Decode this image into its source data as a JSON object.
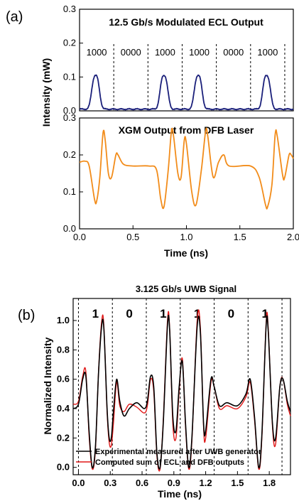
{
  "chart_data": [
    {
      "type": "line",
      "panel_label": "(a)",
      "title": "12.5 Gb/s Modulated ECL Output",
      "ylabel": "Intensity (mW)",
      "xlim": [
        0,
        2.0
      ],
      "ylim": [
        0,
        0.3
      ],
      "y_ticks": [
        "0.0",
        "0.1",
        "0.2",
        "0.3"
      ],
      "bit_labels": [
        "1000",
        "0000",
        "1000",
        "1000",
        "0000",
        "1000"
      ],
      "bit_boundaries": [
        0.32,
        0.64,
        0.96,
        1.28,
        1.6,
        1.92
      ],
      "series": [
        {
          "color": "#1a1f7a",
          "baseline": 0.005,
          "pulses": [
            {
              "center": 0.15,
              "peak": 0.105
            },
            {
              "center": 0.79,
              "peak": 0.105
            },
            {
              "center": 1.11,
              "peak": 0.105
            },
            {
              "center": 1.75,
              "peak": 0.105
            }
          ]
        }
      ]
    },
    {
      "type": "line",
      "title": "XGM Output from DFB Laser",
      "xlabel": "Time (ns)",
      "xlim": [
        0,
        2.0
      ],
      "ylim": [
        0,
        0.3
      ],
      "x_ticks": [
        "0.0",
        "0.5",
        "1.0",
        "1.5",
        "2.0"
      ],
      "y_ticks": [
        "0.0",
        "0.1",
        "0.2",
        "0.3"
      ],
      "series": [
        {
          "color": "#f28c1a",
          "points": [
            [
              0,
              0.18
            ],
            [
              0.05,
              0.183
            ],
            [
              0.09,
              0.17
            ],
            [
              0.14,
              0.08
            ],
            [
              0.16,
              0.075
            ],
            [
              0.19,
              0.14
            ],
            [
              0.22,
              0.26
            ],
            [
              0.24,
              0.24
            ],
            [
              0.27,
              0.15
            ],
            [
              0.3,
              0.14
            ],
            [
              0.34,
              0.2
            ],
            [
              0.36,
              0.2
            ],
            [
              0.41,
              0.175
            ],
            [
              0.5,
              0.17
            ],
            [
              0.65,
              0.17
            ],
            [
              0.72,
              0.16
            ],
            [
              0.76,
              0.08
            ],
            [
              0.79,
              0.06
            ],
            [
              0.83,
              0.16
            ],
            [
              0.86,
              0.265
            ],
            [
              0.88,
              0.25
            ],
            [
              0.92,
              0.15
            ],
            [
              0.95,
              0.14
            ],
            [
              0.98,
              0.24
            ],
            [
              1.0,
              0.23
            ],
            [
              1.05,
              0.1
            ],
            [
              1.09,
              0.065
            ],
            [
              1.14,
              0.16
            ],
            [
              1.18,
              0.265
            ],
            [
              1.2,
              0.25
            ],
            [
              1.25,
              0.14
            ],
            [
              1.3,
              0.18
            ],
            [
              1.35,
              0.2
            ],
            [
              1.4,
              0.17
            ],
            [
              1.6,
              0.17
            ],
            [
              1.68,
              0.14
            ],
            [
              1.74,
              0.065
            ],
            [
              1.76,
              0.06
            ],
            [
              1.8,
              0.12
            ],
            [
              1.83,
              0.255
            ],
            [
              1.85,
              0.25
            ],
            [
              1.9,
              0.145
            ],
            [
              1.92,
              0.14
            ],
            [
              1.96,
              0.2
            ],
            [
              1.98,
              0.2
            ],
            [
              2.0,
              0.19
            ]
          ]
        }
      ]
    },
    {
      "type": "line",
      "panel_label": "(b)",
      "title": "3.125 Gb/s UWB Signal",
      "xlabel": "Time (ns)",
      "ylabel": "Normalized Intensity",
      "xlim": [
        -0.05,
        2.0
      ],
      "ylim": [
        -0.05,
        1.15
      ],
      "x_ticks": [
        "0.0",
        "0.3",
        "0.6",
        "0.9",
        "1.2",
        "1.5",
        "1.8"
      ],
      "y_ticks": [
        "0.0",
        "0.2",
        "0.4",
        "0.6",
        "0.8",
        "1.0"
      ],
      "bit_labels": [
        "1",
        "0",
        "1",
        "1",
        "0",
        "1"
      ],
      "bit_boundaries": [
        0.0,
        0.32,
        0.64,
        0.96,
        1.28,
        1.6,
        1.92
      ],
      "legend_position": "bottom",
      "series": [
        {
          "name": "Experimental measured after UWB generator",
          "color": "#000000",
          "points": [
            [
              -0.05,
              0.4
            ],
            [
              0.0,
              0.43
            ],
            [
              0.04,
              0.6
            ],
            [
              0.07,
              0.62
            ],
            [
              0.1,
              0.25
            ],
            [
              0.13,
              0.0
            ],
            [
              0.16,
              0.14
            ],
            [
              0.19,
              0.65
            ],
            [
              0.22,
              0.97
            ],
            [
              0.24,
              0.94
            ],
            [
              0.27,
              0.4
            ],
            [
              0.29,
              0.2
            ],
            [
              0.31,
              0.2
            ],
            [
              0.33,
              0.38
            ],
            [
              0.36,
              0.6
            ],
            [
              0.39,
              0.45
            ],
            [
              0.43,
              0.35
            ],
            [
              0.48,
              0.4
            ],
            [
              0.55,
              0.44
            ],
            [
              0.62,
              0.4
            ],
            [
              0.65,
              0.45
            ],
            [
              0.68,
              0.62
            ],
            [
              0.71,
              0.55
            ],
            [
              0.74,
              0.1
            ],
            [
              0.77,
              0.0
            ],
            [
              0.8,
              0.3
            ],
            [
              0.84,
              0.97
            ],
            [
              0.86,
              0.94
            ],
            [
              0.89,
              0.35
            ],
            [
              0.92,
              0.25
            ],
            [
              0.95,
              0.55
            ],
            [
              0.98,
              0.72
            ],
            [
              1.01,
              0.3
            ],
            [
              1.04,
              0.0
            ],
            [
              1.07,
              0.2
            ],
            [
              1.12,
              0.96
            ],
            [
              1.15,
              0.92
            ],
            [
              1.18,
              0.3
            ],
            [
              1.2,
              0.25
            ],
            [
              1.25,
              0.6
            ],
            [
              1.28,
              0.55
            ],
            [
              1.33,
              0.42
            ],
            [
              1.4,
              0.44
            ],
            [
              1.5,
              0.42
            ],
            [
              1.58,
              0.5
            ],
            [
              1.62,
              0.6
            ],
            [
              1.66,
              0.35
            ],
            [
              1.7,
              0.0
            ],
            [
              1.73,
              0.22
            ],
            [
              1.77,
              0.96
            ],
            [
              1.79,
              0.93
            ],
            [
              1.83,
              0.3
            ],
            [
              1.86,
              0.2
            ],
            [
              1.9,
              0.55
            ],
            [
              1.93,
              0.6
            ],
            [
              1.97,
              0.45
            ],
            [
              2.0,
              0.38
            ]
          ]
        },
        {
          "name": "Computed sum of ECL and DFB outputs",
          "color": "#e01818",
          "points": [
            [
              -0.05,
              0.43
            ],
            [
              0.0,
              0.45
            ],
            [
              0.04,
              0.62
            ],
            [
              0.07,
              0.65
            ],
            [
              0.1,
              0.22
            ],
            [
              0.13,
              -0.01
            ],
            [
              0.16,
              0.12
            ],
            [
              0.19,
              0.66
            ],
            [
              0.22,
              1.0
            ],
            [
              0.24,
              0.96
            ],
            [
              0.27,
              0.38
            ],
            [
              0.29,
              0.17
            ],
            [
              0.31,
              0.15
            ],
            [
              0.33,
              0.3
            ],
            [
              0.36,
              0.58
            ],
            [
              0.39,
              0.42
            ],
            [
              0.43,
              0.38
            ],
            [
              0.48,
              0.43
            ],
            [
              0.55,
              0.41
            ],
            [
              0.62,
              0.37
            ],
            [
              0.65,
              0.42
            ],
            [
              0.68,
              0.6
            ],
            [
              0.71,
              0.52
            ],
            [
              0.74,
              0.08
            ],
            [
              0.77,
              -0.01
            ],
            [
              0.8,
              0.32
            ],
            [
              0.84,
              1.0
            ],
            [
              0.86,
              0.95
            ],
            [
              0.89,
              0.3
            ],
            [
              0.92,
              0.2
            ],
            [
              0.95,
              0.52
            ],
            [
              0.98,
              0.74
            ],
            [
              1.01,
              0.28
            ],
            [
              1.04,
              -0.01
            ],
            [
              1.07,
              0.18
            ],
            [
              1.12,
              1.0
            ],
            [
              1.15,
              0.95
            ],
            [
              1.18,
              0.28
            ],
            [
              1.2,
              0.2
            ],
            [
              1.25,
              0.58
            ],
            [
              1.28,
              0.55
            ],
            [
              1.33,
              0.4
            ],
            [
              1.4,
              0.42
            ],
            [
              1.5,
              0.4
            ],
            [
              1.58,
              0.48
            ],
            [
              1.62,
              0.58
            ],
            [
              1.66,
              0.33
            ],
            [
              1.7,
              -0.01
            ],
            [
              1.73,
              0.2
            ],
            [
              1.77,
              0.98
            ],
            [
              1.79,
              0.95
            ],
            [
              1.83,
              0.28
            ],
            [
              1.86,
              0.16
            ],
            [
              1.9,
              0.55
            ],
            [
              1.93,
              0.6
            ],
            [
              1.97,
              0.43
            ],
            [
              2.0,
              0.35
            ]
          ]
        }
      ]
    }
  ]
}
